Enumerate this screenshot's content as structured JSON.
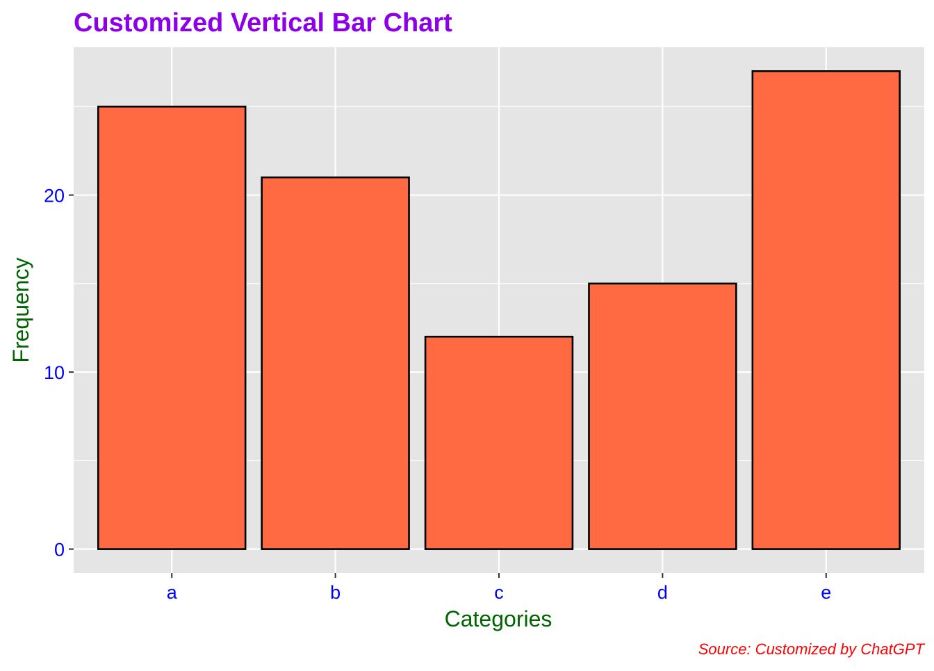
{
  "chart_data": {
    "type": "bar",
    "title": "Customized Vertical Bar Chart",
    "xlabel": "Categories",
    "ylabel": "Frequency",
    "caption": "Source: Customized by ChatGPT",
    "categories": [
      "a",
      "b",
      "c",
      "d",
      "e"
    ],
    "values": [
      25,
      21,
      12,
      15,
      27
    ],
    "ylim": [
      -1.35,
      28.35
    ],
    "yticks": [
      0,
      10,
      20
    ],
    "ytick_labels": [
      "0",
      "10",
      "20"
    ],
    "grid": true,
    "colors": {
      "bar_fill": "#FF6A43",
      "bar_outline": "#000000",
      "panel_background": "#E5E5E5",
      "grid": "#FFFFFF",
      "title": "#8B00E8",
      "axis_title": "#006400",
      "tick_label": "#0000FF",
      "caption": "#FF0000"
    }
  }
}
